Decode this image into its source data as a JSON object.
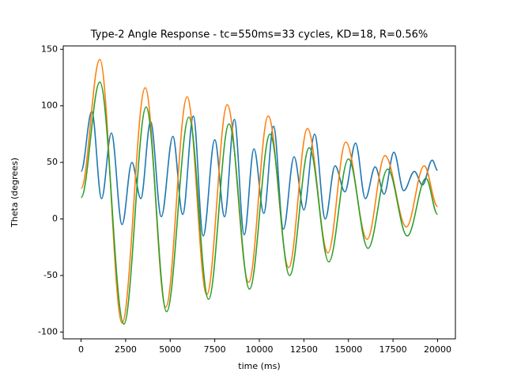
{
  "chart_data": {
    "type": "line",
    "title": "Type-2 Angle Response - tc=550ms=33 cycles, KD=18, R=0.56%",
    "xlabel": "time (ms)",
    "ylabel": "Theta (degrees)",
    "xlim": [
      -1000,
      21000
    ],
    "ylim": [
      -106,
      153
    ],
    "xticks": [
      0,
      2500,
      5000,
      7500,
      10000,
      12500,
      15000,
      17500,
      20000
    ],
    "yticks": [
      -100,
      -50,
      0,
      50,
      100,
      150
    ],
    "series": [
      {
        "color": "#1f77b4",
        "x": [
          0,
          600,
          1150,
          1700,
          2300,
          2850,
          3350,
          3900,
          4500,
          5150,
          5700,
          6300,
          6850,
          7500,
          8050,
          8600,
          9150,
          9700,
          10250,
          10800,
          11350,
          11950,
          12500,
          13100,
          13700,
          14250,
          14800,
          15400,
          15950,
          16500,
          17000,
          17550,
          18100,
          18700,
          19150,
          19700,
          20000
        ],
        "values": [
          42,
          95,
          18,
          76,
          -5,
          50,
          18,
          86,
          2,
          73,
          4,
          91,
          -15,
          70,
          2,
          88,
          -14,
          62,
          5,
          82,
          -9,
          55,
          8,
          75,
          0,
          47,
          24,
          67,
          18,
          46,
          22,
          59,
          25,
          42,
          30,
          52,
          43
        ]
      },
      {
        "color": "#ff7f0e",
        "x": [
          0,
          1050,
          2300,
          3600,
          4750,
          5950,
          7050,
          8200,
          9400,
          10500,
          11650,
          12700,
          13850,
          14850,
          16050,
          17050,
          18250,
          19250,
          20000
        ],
        "values": [
          27,
          141,
          -92,
          116,
          -78,
          108,
          -67,
          101,
          -56,
          91,
          -43,
          80,
          -30,
          68,
          -18,
          56,
          -7,
          47,
          11
        ]
      },
      {
        "color": "#2ca02c",
        "x": [
          0,
          1050,
          2400,
          3650,
          4800,
          6050,
          7150,
          8300,
          9450,
          10600,
          11700,
          12800,
          13900,
          15000,
          16100,
          17200,
          18300,
          19350,
          20000
        ],
        "values": [
          19,
          121,
          -93,
          99,
          -82,
          90,
          -71,
          84,
          -62,
          75,
          -50,
          63,
          -38,
          53,
          -26,
          44,
          -15,
          36,
          4
        ]
      }
    ]
  }
}
